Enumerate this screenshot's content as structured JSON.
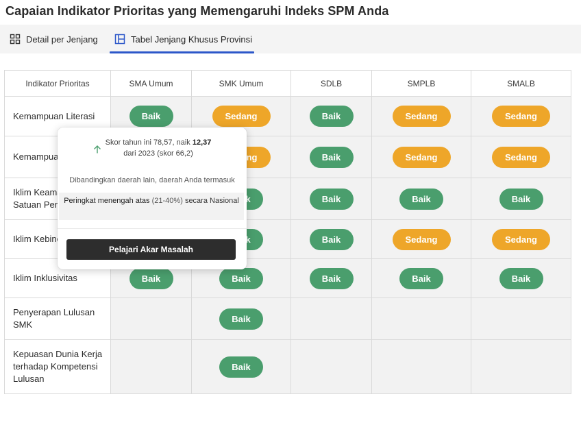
{
  "page": {
    "title": "Capaian Indikator Prioritas yang Memengaruhi Indeks SPM Anda"
  },
  "tabs": [
    {
      "label": "Detail per Jenjang",
      "icon": "grid-icon",
      "active": false
    },
    {
      "label": "Tabel Jenjang Khusus Provinsi",
      "icon": "table-layout-icon",
      "active": true
    }
  ],
  "table": {
    "headers": [
      "Indikator Prioritas",
      "SMA Umum",
      "SMK Umum",
      "SDLB",
      "SMPLB",
      "SMALB"
    ],
    "rows": [
      {
        "label": "Kemampuan Literasi",
        "cells": [
          "Baik",
          "Sedang",
          "Baik",
          "Sedang",
          "Sedang"
        ]
      },
      {
        "label": "Kemampuan Numerasi",
        "cells": [
          "",
          "Sedang",
          "Baik",
          "Sedang",
          "Sedang"
        ]
      },
      {
        "label": "Iklim Keamanan Satuan Pendidikan",
        "cells": [
          "",
          "Baik",
          "Baik",
          "Baik",
          "Baik"
        ]
      },
      {
        "label": "Iklim Kebinekaan",
        "cells": [
          "",
          "Baik",
          "Baik",
          "Sedang",
          "Sedang"
        ]
      },
      {
        "label": "Iklim Inklusivitas",
        "cells": [
          "Baik",
          "Baik",
          "Baik",
          "Baik",
          "Baik"
        ]
      },
      {
        "label": "Penyerapan Lulusan SMK",
        "cells": [
          "",
          "Baik",
          "",
          "",
          ""
        ]
      },
      {
        "label": "Kepuasan Dunia Kerja terhadap Kompetensi Lulusan",
        "cells": [
          "",
          "Baik",
          "",
          "",
          ""
        ]
      }
    ]
  },
  "popover": {
    "score_prefix": "Skor tahun ini 78,57, naik ",
    "score_increase": "12,37",
    "score_suffix": "dari 2023 (skor 66,2)",
    "compare_text": "Dibandingkan daerah lain, daerah Anda termasuk",
    "rank_label": "Peringkat menengah atas",
    "rank_percent": "(21-40%)",
    "rank_suffix": "secara Nasional",
    "button_label": "Pelajari Akar Masalah"
  },
  "colors": {
    "baik": "#4a9e6d",
    "sedang": "#eea629",
    "accent": "#2c57c9",
    "button": "#2d2d2d"
  }
}
